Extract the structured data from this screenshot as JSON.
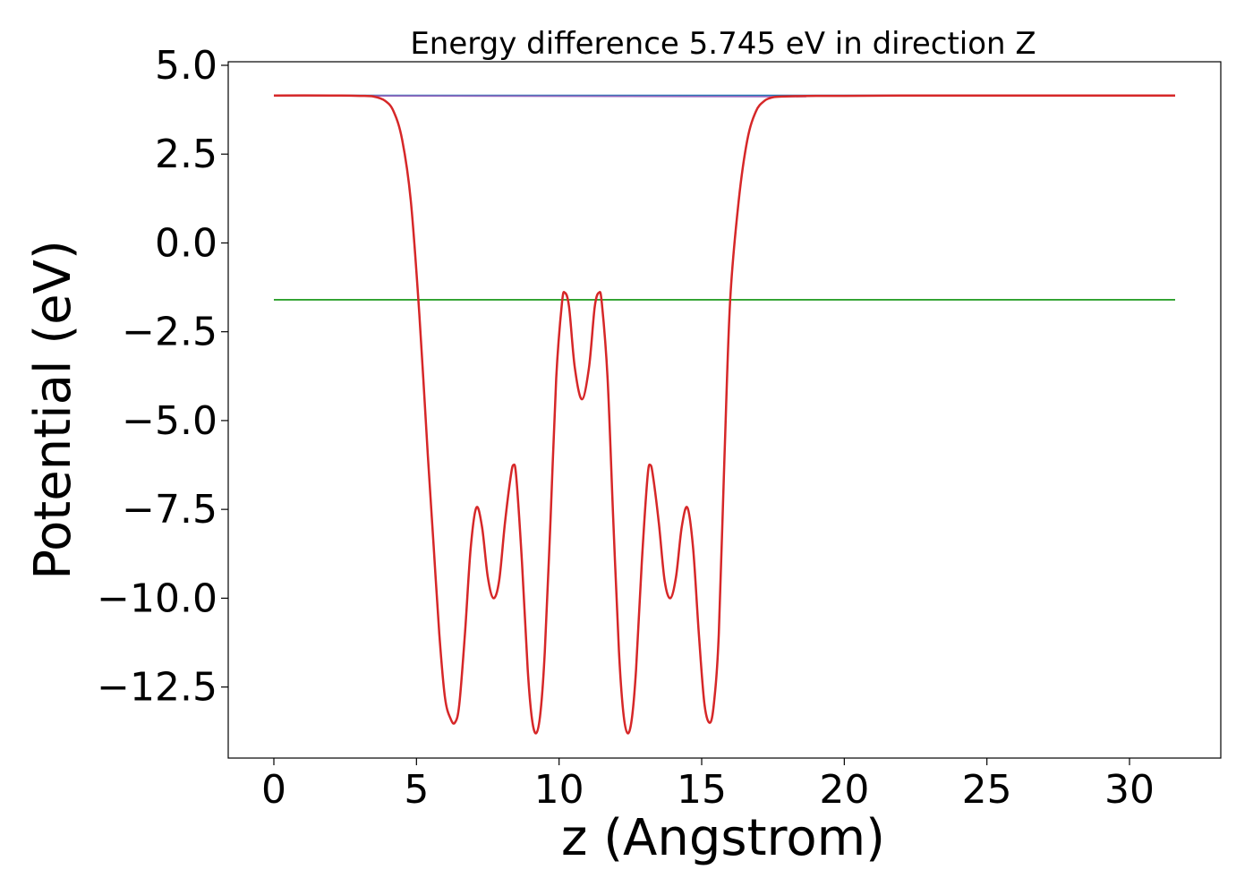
{
  "chart_data": {
    "type": "line",
    "title": "Energy difference 5.745 eV in direction Z",
    "xlabel": "z (Angstrom)",
    "ylabel": "Potential (eV)",
    "xlim": [
      -1.6,
      33.2
    ],
    "ylim": [
      -14.5,
      5.1
    ],
    "x_ticks": [
      0,
      5,
      10,
      15,
      20,
      25,
      30
    ],
    "x_tick_labels": [
      "0",
      "5",
      "10",
      "15",
      "20",
      "25",
      "30"
    ],
    "y_ticks": [
      5.0,
      2.5,
      0.0,
      -2.5,
      -5.0,
      -7.5,
      -10.0,
      -12.5
    ],
    "y_tick_labels": [
      "5.0",
      "2.5",
      "0.0",
      "−2.5",
      "−5.0",
      "−7.5",
      "−10.0",
      "−12.5"
    ],
    "grid": false,
    "legend": "none",
    "series": [
      {
        "color": "#1f77b4",
        "x": [
          0,
          31.6
        ],
        "y": [
          4.15,
          4.15
        ]
      },
      {
        "color": "#2ca02c",
        "x": [
          0,
          31.6
        ],
        "y": [
          -1.6,
          -1.6
        ]
      },
      {
        "color": "#9467bd",
        "x": [
          0,
          1,
          2,
          3,
          3.5,
          17.5,
          18,
          19,
          20,
          22,
          25,
          28,
          31.6
        ],
        "y": [
          4.15,
          4.15,
          4.15,
          4.14,
          4.14,
          4.12,
          4.13,
          4.14,
          4.14,
          4.15,
          4.15,
          4.15,
          4.15
        ]
      },
      {
        "color": "#d62728",
        "x": [
          0,
          2,
          3,
          3.5,
          3.9,
          4.2,
          4.5,
          4.8,
          5.1,
          5.4,
          5.6,
          5.8,
          6.0,
          6.2,
          6.35,
          6.5,
          6.7,
          6.9,
          7.1,
          7.3,
          7.5,
          7.7,
          7.9,
          8.1,
          8.3,
          8.4,
          8.5,
          8.7,
          8.9,
          9.05,
          9.2,
          9.35,
          9.5,
          9.7,
          9.9,
          10.1,
          10.2,
          10.35,
          10.55,
          10.8,
          11.05,
          11.25,
          11.4,
          11.5,
          11.7,
          11.9,
          12.1,
          12.25,
          12.4,
          12.55,
          12.7,
          12.9,
          13.1,
          13.2,
          13.3,
          13.5,
          13.7,
          13.9,
          14.1,
          14.3,
          14.5,
          14.7,
          14.9,
          15.1,
          15.3,
          15.45,
          15.6,
          15.8,
          16.0,
          16.3,
          16.6,
          16.9,
          17.2,
          17.5,
          17.8,
          18.2,
          19,
          20,
          22,
          25,
          28,
          31.6
        ],
        "y": [
          4.15,
          4.15,
          4.14,
          4.12,
          4.0,
          3.7,
          2.9,
          1.2,
          -2.0,
          -6.0,
          -8.5,
          -11.0,
          -12.8,
          -13.4,
          -13.5,
          -13.0,
          -11.0,
          -8.6,
          -7.45,
          -8.0,
          -9.4,
          -10.0,
          -9.5,
          -7.9,
          -6.6,
          -6.25,
          -6.6,
          -9.0,
          -12.0,
          -13.4,
          -13.8,
          -13.2,
          -11.5,
          -7.8,
          -3.8,
          -1.7,
          -1.4,
          -1.8,
          -3.5,
          -4.4,
          -3.5,
          -1.8,
          -1.4,
          -1.7,
          -3.8,
          -7.8,
          -11.5,
          -13.2,
          -13.8,
          -13.4,
          -12.0,
          -9.0,
          -6.6,
          -6.25,
          -6.6,
          -7.9,
          -9.5,
          -10.0,
          -9.4,
          -8.0,
          -7.45,
          -8.6,
          -11.0,
          -13.0,
          -13.5,
          -12.8,
          -11.0,
          -6.0,
          -1.6,
          1.2,
          2.9,
          3.7,
          4.0,
          4.1,
          4.12,
          4.13,
          4.14,
          4.14,
          4.15,
          4.15,
          4.15,
          4.15
        ]
      }
    ]
  }
}
